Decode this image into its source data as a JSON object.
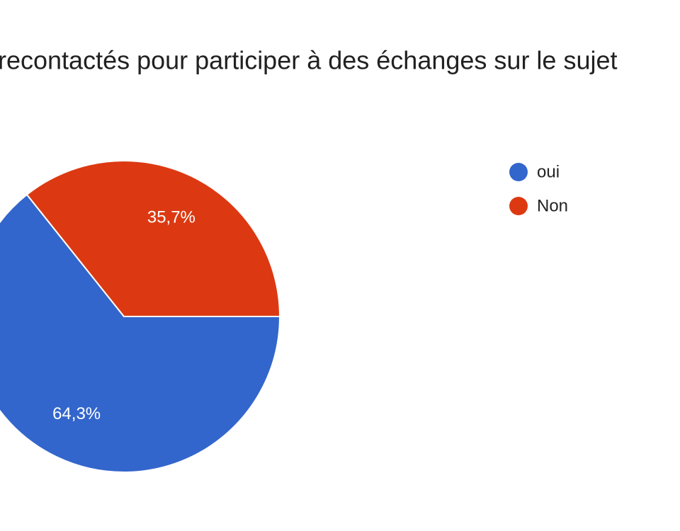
{
  "chart_data": {
    "type": "pie",
    "title": "recontactés pour participer à des échanges sur le sujet",
    "categories": [
      "oui",
      "Non"
    ],
    "values": [
      64.3,
      35.7
    ],
    "value_labels": [
      "64,3%",
      "35,7%"
    ],
    "colors": [
      "#3366cc",
      "#dc3912"
    ],
    "legend": "right"
  }
}
